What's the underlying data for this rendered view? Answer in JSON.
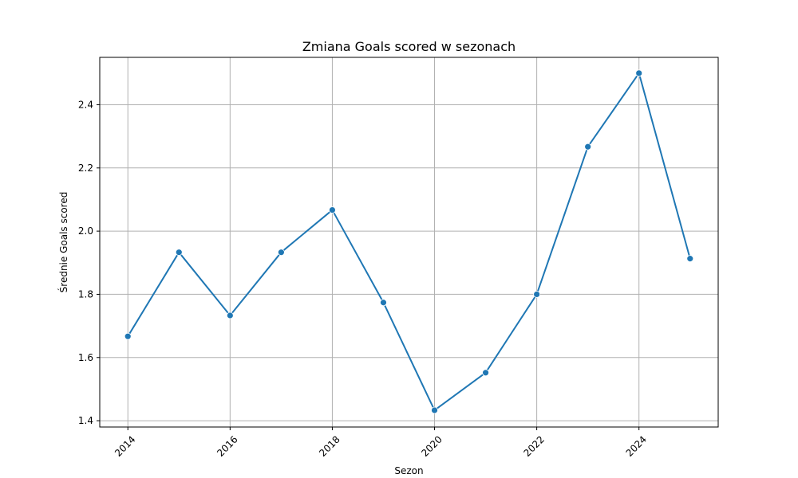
{
  "chart_data": {
    "type": "line",
    "title": "Zmiana Goals scored w sezonach",
    "xlabel": "Sezon",
    "ylabel": "Średnie Goals scored",
    "x": [
      2014,
      2015,
      2016,
      2017,
      2018,
      2019,
      2020,
      2021,
      2022,
      2023,
      2024,
      2025
    ],
    "series": [
      {
        "values": [
          1.667,
          1.933,
          1.733,
          1.933,
          2.067,
          1.774,
          1.433,
          1.552,
          1.8,
          2.267,
          2.5,
          1.913
        ],
        "color": "#1f77b4",
        "marker": "circle"
      }
    ],
    "xticks": [
      2014,
      2016,
      2018,
      2020,
      2022,
      2024
    ],
    "xtick_labels": [
      "2014",
      "2016",
      "2018",
      "2020",
      "2022",
      "2024"
    ],
    "yticks": [
      1.4,
      1.6,
      1.8,
      2.0,
      2.2,
      2.4
    ],
    "ytick_labels": [
      "1.4",
      "1.6",
      "1.8",
      "2.0",
      "2.2",
      "2.4"
    ],
    "xlim": [
      2013.45,
      2025.55
    ],
    "ylim": [
      1.38,
      2.55
    ],
    "grid": true,
    "xtick_rotation": "45 degrees"
  }
}
